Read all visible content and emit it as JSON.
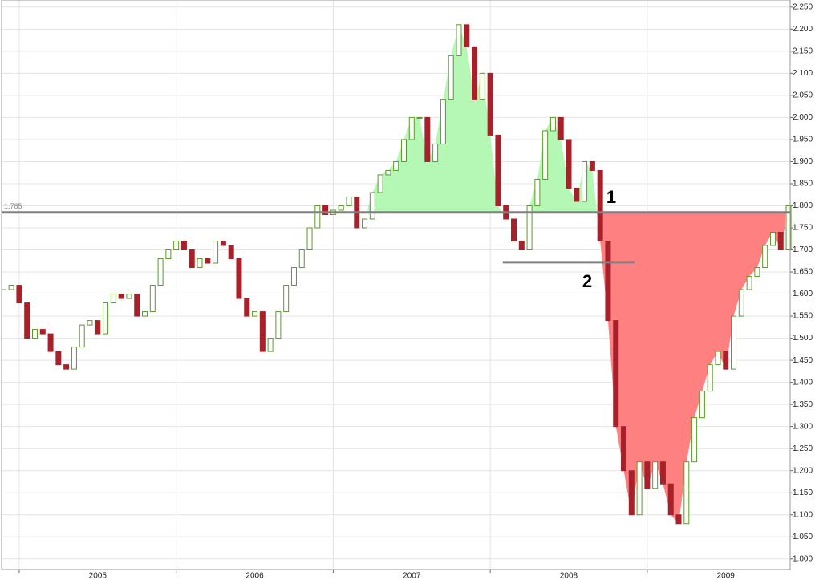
{
  "chart_data": {
    "type": "candlestick",
    "x": [
      2004.9,
      2004.95,
      2005.0,
      2005.05,
      2005.1,
      2005.15,
      2005.2,
      2005.25,
      2005.3,
      2005.35,
      2005.4,
      2005.45,
      2005.5,
      2005.55,
      2005.6,
      2005.65,
      2005.7,
      2005.75,
      2005.8,
      2005.85,
      2005.9,
      2005.95,
      2006.0,
      2006.05,
      2006.1,
      2006.15,
      2006.2,
      2006.25,
      2006.3,
      2006.35,
      2006.4,
      2006.45,
      2006.5,
      2006.55,
      2006.6,
      2006.65,
      2006.7,
      2006.75,
      2006.8,
      2006.85,
      2006.9,
      2006.95,
      2007.0,
      2007.05,
      2007.1,
      2007.15,
      2007.2,
      2007.25,
      2007.3,
      2007.35,
      2007.4,
      2007.45,
      2007.5,
      2007.55,
      2007.6,
      2007.65,
      2007.7,
      2007.75,
      2007.8,
      2007.85,
      2007.9,
      2007.95,
      2008.0,
      2008.05,
      2008.1,
      2008.15,
      2008.2,
      2008.25,
      2008.3,
      2008.35,
      2008.4,
      2008.45,
      2008.5,
      2008.55,
      2008.6,
      2008.65,
      2008.7,
      2008.75,
      2008.8,
      2008.85,
      2008.9,
      2008.95,
      2009.0,
      2009.05,
      2009.1,
      2009.15,
      2009.2,
      2009.25,
      2009.3,
      2009.35,
      2009.4,
      2009.45,
      2009.5,
      2009.55,
      2009.6,
      2009.65,
      2009.7,
      2009.75,
      2009.8,
      2009.85,
      2009.9
    ],
    "series": [
      {
        "up_color": "#5a9a2a",
        "down_color": "#a8202a",
        "values": [
          1.61,
          1.62,
          1.58,
          1.5,
          1.52,
          1.51,
          1.47,
          1.44,
          1.43,
          1.48,
          1.53,
          1.54,
          1.51,
          1.58,
          1.6,
          1.59,
          1.6,
          1.55,
          1.56,
          1.62,
          1.68,
          1.7,
          1.72,
          1.7,
          1.66,
          1.68,
          1.67,
          1.72,
          1.71,
          1.68,
          1.59,
          1.55,
          1.56,
          1.47,
          1.5,
          1.56,
          1.62,
          1.66,
          1.7,
          1.75,
          1.8,
          1.78,
          1.79,
          1.8,
          1.82,
          1.75,
          1.77,
          1.83,
          1.87,
          1.88,
          1.9,
          1.95,
          2.0,
          2.0,
          1.9,
          1.94,
          2.04,
          2.14,
          2.21,
          2.16,
          2.04,
          2.1,
          1.96,
          1.8,
          1.77,
          1.72,
          1.7,
          1.8,
          1.86,
          1.97,
          2.0,
          1.95,
          1.84,
          1.81,
          1.9,
          1.88,
          1.72,
          1.54,
          1.3,
          1.2,
          1.1,
          1.22,
          1.16,
          1.22,
          1.17,
          1.1,
          1.08,
          1.22,
          1.32,
          1.38,
          1.44,
          1.47,
          1.43,
          1.55,
          1.61,
          1.64,
          1.66,
          1.71,
          1.74,
          1.7,
          1.8
        ]
      }
    ],
    "xlim": [
      2004.888,
      2009.91
    ],
    "xticks": [
      2005,
      2006,
      2007,
      2008,
      2009
    ],
    "ylim": [
      0.976,
      2.266
    ],
    "yticks": [
      {
        "value": 1.0,
        "label": "1.000"
      },
      {
        "value": 1.05,
        "label": "1.050"
      },
      {
        "value": 1.1,
        "label": "1.100"
      },
      {
        "value": 1.15,
        "label": "1.150"
      },
      {
        "value": 1.2,
        "label": "1.200"
      },
      {
        "value": 1.25,
        "label": "1.250"
      },
      {
        "value": 1.3,
        "label": "1.300"
      },
      {
        "value": 1.35,
        "label": "1.350"
      },
      {
        "value": 1.4,
        "label": "1.400"
      },
      {
        "value": 1.45,
        "label": "1.450"
      },
      {
        "value": 1.5,
        "label": "1.500"
      },
      {
        "value": 1.55,
        "label": "1.550"
      },
      {
        "value": 1.6,
        "label": "1.600"
      },
      {
        "value": 1.65,
        "label": "1.650"
      },
      {
        "value": 1.7,
        "label": "1.700"
      },
      {
        "value": 1.75,
        "label": "1.750"
      },
      {
        "value": 1.8,
        "label": "1.800"
      },
      {
        "value": 1.85,
        "label": "1.850"
      },
      {
        "value": 1.9,
        "label": "1.900"
      },
      {
        "value": 1.95,
        "label": "1.950"
      },
      {
        "value": 2.0,
        "label": "2.000"
      },
      {
        "value": 2.05,
        "label": "2.050"
      },
      {
        "value": 2.1,
        "label": "2.100"
      },
      {
        "value": 2.15,
        "label": "2.150"
      },
      {
        "value": 2.2,
        "label": "2.200"
      },
      {
        "value": 2.25,
        "label": "2.250"
      }
    ],
    "grid": true,
    "reference_lines": [
      {
        "value": 1.785,
        "label": "1.785",
        "color": "#808080"
      },
      {
        "value": 1.672,
        "from": 2008.08,
        "to": 2008.92,
        "color": "#808080"
      }
    ],
    "shaded_regions": [
      {
        "from": 2007.22,
        "to": 2008.68,
        "side": "above",
        "level": 1.785,
        "color": "#b5f7b5"
      },
      {
        "from": 2008.68,
        "to": 2009.88,
        "side": "below",
        "level": 1.785,
        "color": "#ff8080"
      }
    ],
    "annotations": [
      {
        "text": "1"
      },
      {
        "text": "2"
      }
    ]
  }
}
